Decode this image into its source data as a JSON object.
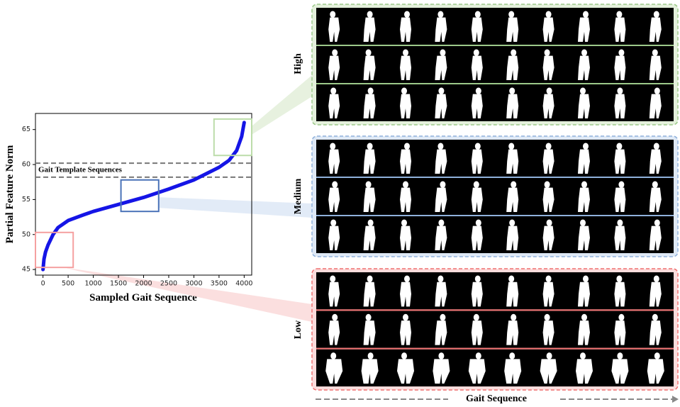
{
  "chart_data": {
    "type": "line",
    "xlabel": "Sampled Gait Sequence",
    "ylabel": "Partial Feature Norm",
    "x": [
      0,
      20,
      50,
      100,
      200,
      300,
      500,
      800,
      1000,
      1500,
      2000,
      2500,
      3000,
      3500,
      3700,
      3850,
      3950,
      4000
    ],
    "values": [
      45,
      46.5,
      47.5,
      48.5,
      50,
      51,
      52,
      52.8,
      53.3,
      54.3,
      55.3,
      56.5,
      57.8,
      59.6,
      60.6,
      62,
      64,
      66
    ],
    "color": "#1515e6",
    "xlim": [
      -150,
      4150
    ],
    "ylim": [
      44.2,
      67.3
    ],
    "xticks": [
      0,
      500,
      1000,
      1500,
      2000,
      2500,
      3000,
      3500,
      4000
    ],
    "yticks": [
      45,
      50,
      55,
      60,
      65
    ],
    "hlines": [
      60.2,
      58.2
    ],
    "annotation": "Gait Template Sequences",
    "regions": [
      {
        "x": [
          3400,
          4150
        ],
        "y": [
          61.3,
          66.5
        ],
        "color": "#bcdcaa"
      },
      {
        "x": [
          1550,
          2300
        ],
        "y": [
          53.3,
          57.8
        ],
        "color": "#4a72b8"
      },
      {
        "x": [
          -150,
          600
        ],
        "y": [
          45.3,
          50.3
        ],
        "color": "#f5a0a0"
      }
    ]
  },
  "panels": [
    {
      "label": "High",
      "border": "#9cc98a",
      "fill": "#e4f0dc"
    },
    {
      "label": "Medium",
      "border": "#8fb1db",
      "fill": "#dfe9f6"
    },
    {
      "label": "Low",
      "border": "#ef7070",
      "fill": "#fbdcdc"
    }
  ],
  "footer": "Gait Sequence"
}
